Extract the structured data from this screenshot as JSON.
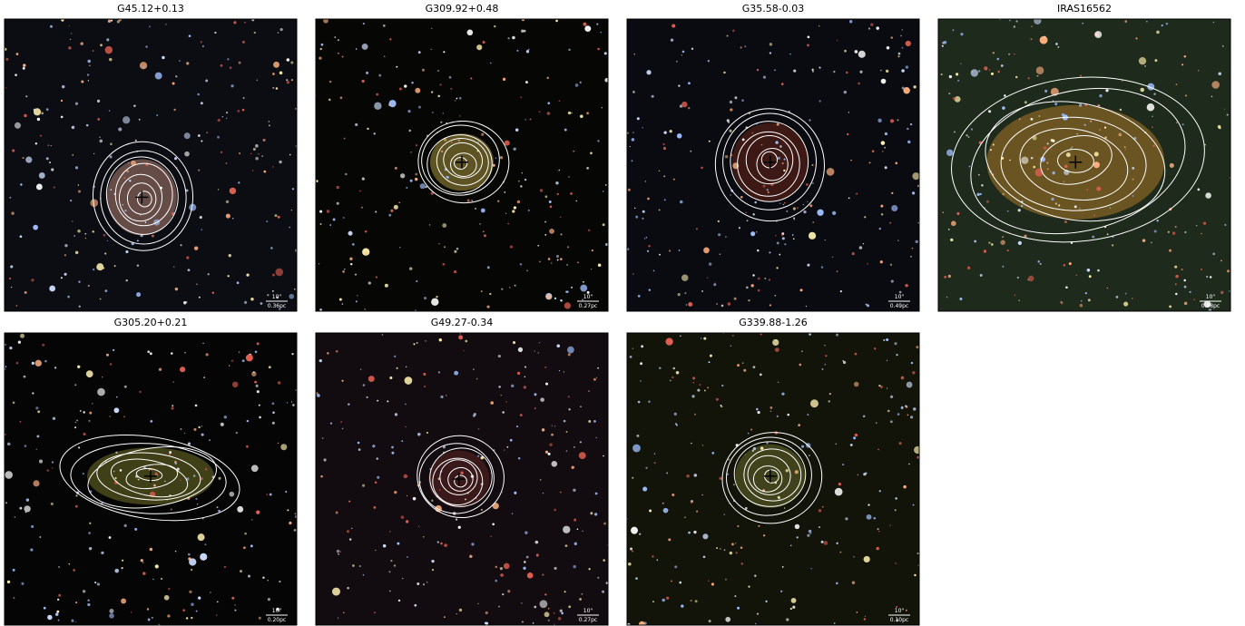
{
  "panels": [
    {
      "title": "G45.12+0.13",
      "scale_angle": "10\"",
      "scale_length": "0.36pc"
    },
    {
      "title": "G309.92+0.48",
      "scale_angle": "10\"",
      "scale_length": "0.27pc"
    },
    {
      "title": "G35.58-0.03",
      "scale_angle": "10\"",
      "scale_length": "0.49pc"
    },
    {
      "title": "IRAS16562",
      "scale_angle": "10\"",
      "scale_length": "0.08pc"
    },
    {
      "title": "G305.20+0.21",
      "scale_angle": "10\"",
      "scale_length": "0.20pc"
    },
    {
      "title": "G49.27-0.34",
      "scale_angle": "10\"",
      "scale_length": "0.27pc"
    },
    {
      "title": "G339.88-1.26",
      "scale_angle": "10\"",
      "scale_length": "0.10pc"
    }
  ]
}
